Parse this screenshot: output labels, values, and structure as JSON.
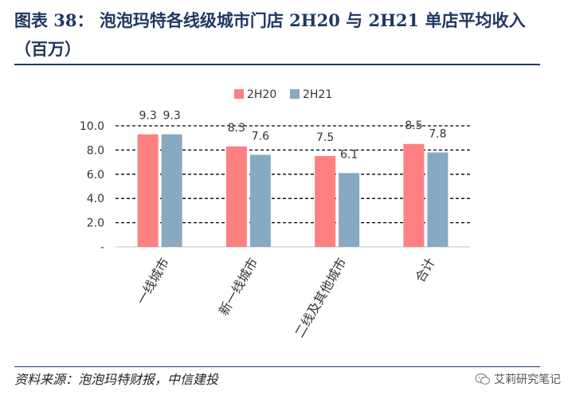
{
  "title": "图表 38：  泡泡玛特各线级城市门店 2H20 与 2H21 单店平均收入（百万）",
  "source": "资料来源：泡泡玛特财报，中信建投",
  "watermark": "艾莉研究笔记",
  "chart_data": {
    "type": "bar",
    "categories": [
      "一线城市",
      "新一线城市",
      "二线及其他城市",
      "合计"
    ],
    "series": [
      {
        "name": "2H20",
        "values": [
          9.3,
          8.3,
          7.5,
          8.5
        ],
        "color": "#ff8080"
      },
      {
        "name": "2H21",
        "values": [
          9.3,
          7.6,
          6.1,
          7.8
        ],
        "color": "#87a9c2"
      }
    ],
    "yticks": [
      "-",
      "2.0",
      "4.0",
      "6.0",
      "8.0",
      "10.0"
    ],
    "ylim": [
      0,
      10
    ],
    "grid": "dashed",
    "legend": "top-center"
  }
}
